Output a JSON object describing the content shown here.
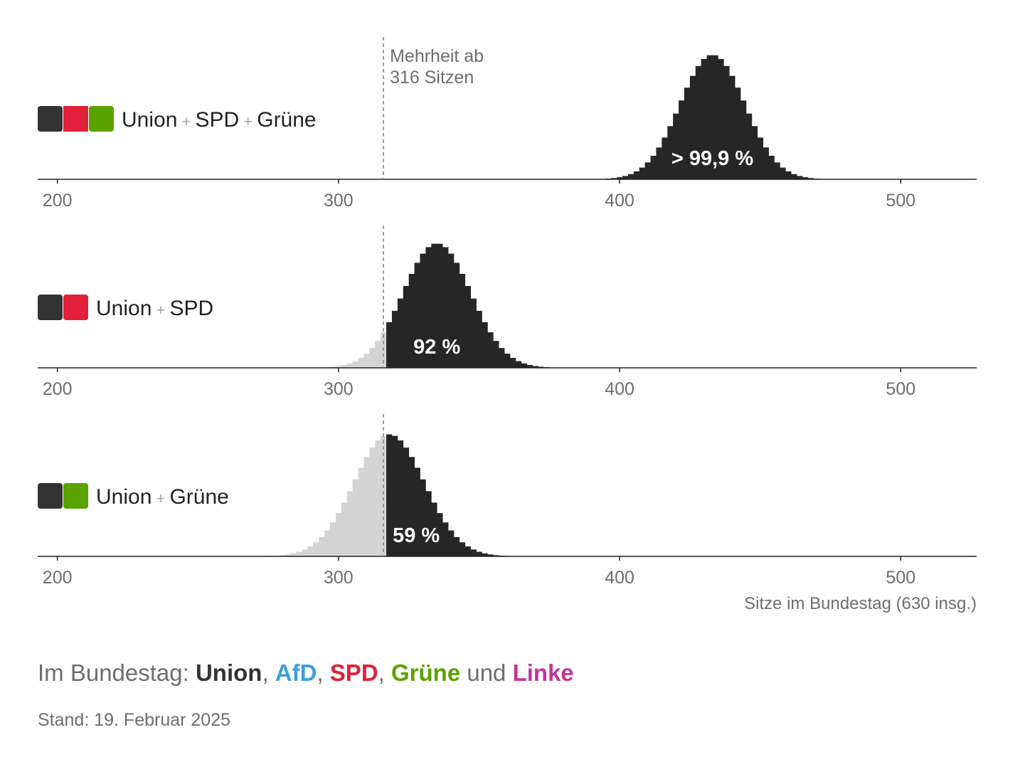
{
  "chart_data": {
    "type": "bar",
    "majority": {
      "value": 316,
      "label_lines": [
        "Mehrheit ab",
        "316 Sitzen"
      ]
    },
    "x_ticks": [
      200,
      300,
      400,
      500
    ],
    "xlim": [
      193,
      527
    ],
    "xlabel": "Sitze im Bundestag (630 insg.)",
    "colors": {
      "above": "#262626",
      "below": "#d4d4d4",
      "Union": "#333333",
      "SPD": "#e3203a",
      "Grüne": "#5aa200",
      "AfD": "#3b9fdc",
      "Linke": "#c2359a"
    },
    "panels": [
      {
        "parties": [
          "Union",
          "SPD",
          "Grüne"
        ],
        "probability_label": "> 99,9 %",
        "distribution": {
          "mean": 433,
          "sd": 11.5,
          "peak": 1.0
        }
      },
      {
        "parties": [
          "Union",
          "SPD"
        ],
        "probability_label": "92 %",
        "distribution": {
          "mean": 335,
          "sd": 12,
          "peak": 1.0
        }
      },
      {
        "parties": [
          "Union",
          "Grüne"
        ],
        "probability_label": "59 %",
        "distribution": {
          "mean": 318,
          "sd": 12.5,
          "peak": 0.98
        }
      }
    ]
  },
  "footer": {
    "prefix": "Im Bundestag: ",
    "parties": [
      {
        "name": "Union",
        "sep": ", "
      },
      {
        "name": "AfD",
        "sep": ", "
      },
      {
        "name": "SPD",
        "sep": ", "
      },
      {
        "name": "Grüne",
        "sep": " und "
      },
      {
        "name": "Linke",
        "sep": ""
      }
    ],
    "stand": "Stand: 19. Februar 2025"
  }
}
